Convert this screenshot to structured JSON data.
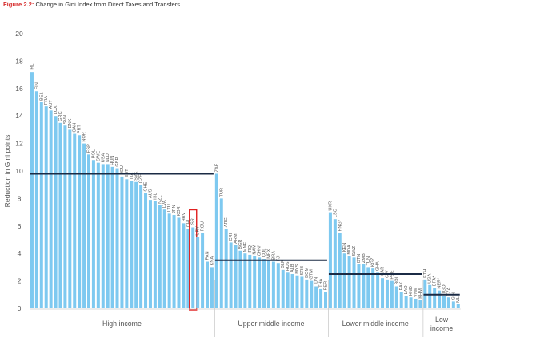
{
  "figure": {
    "label": "Figure 2.2:",
    "caption": "Change in Gini Index from Direct Taxes and Transfers"
  },
  "colors": {
    "bar": "#7ec9f0",
    "average_line": "#1b2b45",
    "highlight": "#e02020",
    "label_accent": "#d62a2a",
    "axis_text": "#555555",
    "divider": "#cccccc"
  },
  "chart_data": {
    "type": "bar",
    "title": "",
    "ylabel": "Reduction in  Gini points",
    "xlabel": "",
    "ylim": [
      0,
      20
    ],
    "yticks": [
      0,
      2,
      4,
      6,
      8,
      10,
      12,
      14,
      16,
      18,
      20
    ],
    "grid": false,
    "highlighted_category": "ISR",
    "groups": [
      {
        "name": "High income",
        "average": 9.8,
        "categories": [
          "IRL",
          "FIN",
          "BEL",
          "FRA",
          "AUT",
          "LUX",
          "GRC",
          "SVN",
          "DNK",
          "CAN",
          "PRT",
          "NOR",
          "ESP",
          "POL",
          "SWE",
          "USA",
          "NLD",
          "HUN",
          "GBR",
          "DEU",
          "EST",
          "ITA",
          "SVK",
          "CZE",
          "CHE",
          "AUS",
          "ISL",
          "NZL",
          "LVA",
          "LTU",
          "JPN",
          "KOR",
          "HRV",
          "CHL",
          "ISR",
          "URY",
          "ROU",
          "PAN",
          "KNA"
        ],
        "values": [
          17.2,
          15.8,
          15.0,
          14.7,
          14.4,
          14.0,
          13.5,
          13.3,
          13.0,
          12.7,
          12.6,
          12.0,
          11.2,
          10.8,
          10.6,
          10.5,
          10.5,
          10.3,
          10.2,
          9.6,
          9.4,
          9.3,
          9.2,
          9.0,
          8.4,
          7.9,
          7.8,
          7.5,
          7.2,
          6.9,
          6.8,
          6.6,
          6.2,
          5.8,
          5.9,
          5.2,
          5.5,
          3.4,
          3.0
        ]
      },
      {
        "name": "Upper middle income",
        "average": 3.5,
        "categories": [
          "ZAF",
          "TUR",
          "ARG",
          "CRI",
          "ARM",
          "BGR",
          "MNE",
          "IRQ",
          "NAM",
          "CHN*",
          "COL",
          "MEX",
          "BRA",
          "FJI",
          "BLR",
          "RUS",
          "ALB",
          "MYS",
          "SRB",
          "DOM",
          "GTM",
          "IDN",
          "THA",
          "PER"
        ],
        "values": [
          9.8,
          8.0,
          5.8,
          4.8,
          4.6,
          4.2,
          4.0,
          3.9,
          3.8,
          3.7,
          3.6,
          3.5,
          3.4,
          3.3,
          2.8,
          2.6,
          2.5,
          2.4,
          2.3,
          2.1,
          2.0,
          1.6,
          1.4,
          1.2
        ]
      },
      {
        "name": "Lower middle income",
        "average": 2.5,
        "categories": [
          "UKR",
          "LSO",
          "PNG*",
          "KEN",
          "MDA",
          "SWZ",
          "BTN",
          "ZMB",
          "TUN",
          "KGZ",
          "GHA",
          "MAR",
          "CIV",
          "PSE",
          "BOL",
          "PAK",
          "LAO",
          "HND",
          "VNM",
          "KHM"
        ],
        "values": [
          7.0,
          6.5,
          5.5,
          4.0,
          3.8,
          3.7,
          3.2,
          3.2,
          3.0,
          2.9,
          2.6,
          2.2,
          2.1,
          2.0,
          1.6,
          1.2,
          0.9,
          0.8,
          0.7,
          0.6
        ]
      },
      {
        "name": "Low income",
        "average": 1.0,
        "categories": [
          "ETH",
          "UGA",
          "BFA*",
          "NER*",
          "TGO",
          "TZA",
          "GIN",
          "MLI"
        ],
        "values": [
          2.1,
          1.7,
          1.5,
          1.3,
          0.9,
          0.8,
          0.5,
          0.3
        ]
      }
    ]
  }
}
